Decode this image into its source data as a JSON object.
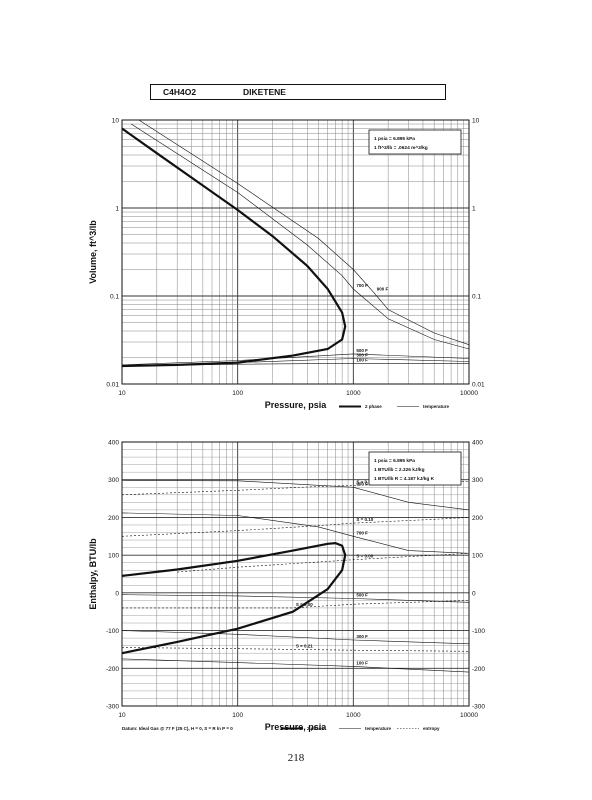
{
  "header": {
    "formula": "C4H4O2",
    "compound": "DIKETENE"
  },
  "page_number": "218",
  "chart_data": [
    {
      "type": "line",
      "id": "volume",
      "xlabel": "Pressure,  psia",
      "ylabel": "Volume, ft^3/lb",
      "xscale": "log",
      "yscale": "log",
      "xlim": [
        10,
        10000
      ],
      "ylim": [
        0.01,
        10
      ],
      "x_ticks": [
        10,
        100,
        1000,
        10000
      ],
      "y_ticks": [
        0.01,
        0.1,
        1,
        10
      ],
      "x_tick_labels": [
        "10",
        "100",
        "1000",
        "10000"
      ],
      "y_tick_labels": [
        "0.01",
        "0.1",
        "1",
        "10"
      ],
      "y_tick_labels_right": [
        "0.01",
        "0.1",
        "1",
        "10"
      ],
      "grid": true,
      "conversion_box": [
        "1 psia = 6.895 kPa",
        "1 ft^3/lb = .0624 m^3/kg"
      ],
      "legend": [
        {
          "label": "2 phase",
          "style": "thick"
        },
        {
          "label": "temperature",
          "style": "thin"
        }
      ],
      "series": [
        {
          "kind": "2 phase",
          "x": [
            10,
            20,
            50,
            100,
            200,
            400,
            600,
            800,
            850,
            800,
            600,
            300,
            100,
            30,
            10
          ],
          "y": [
            8,
            4.2,
            1.8,
            0.95,
            0.48,
            0.22,
            0.12,
            0.065,
            0.045,
            0.032,
            0.025,
            0.021,
            0.0175,
            0.0165,
            0.016
          ]
        },
        {
          "kind": "temperature",
          "label": "100 F",
          "x": [
            10,
            100,
            1000,
            10000
          ],
          "y": [
            0.016,
            0.0168,
            0.0172,
            0.017
          ]
        },
        {
          "kind": "temperature",
          "label": "300 F",
          "x": [
            10,
            100,
            1000,
            10000
          ],
          "y": [
            0.016,
            0.0175,
            0.0195,
            0.018
          ]
        },
        {
          "kind": "temperature",
          "label": "500 F",
          "x": [
            10,
            100,
            1000,
            10000
          ],
          "y": [
            0.0165,
            0.0185,
            0.022,
            0.0195
          ]
        },
        {
          "kind": "temperature",
          "label": "700 F",
          "x": [
            12,
            100,
            400,
            800,
            1000,
            2000,
            5000,
            10000
          ],
          "y": [
            9,
            1.5,
            0.38,
            0.17,
            0.12,
            0.055,
            0.032,
            0.025
          ]
        },
        {
          "kind": "temperature",
          "label": "900 F",
          "x": [
            14,
            100,
            500,
            1000,
            1500,
            2000,
            5000,
            10000
          ],
          "y": [
            10,
            1.9,
            0.45,
            0.2,
            0.11,
            0.07,
            0.038,
            0.028
          ]
        }
      ]
    },
    {
      "type": "line",
      "id": "enthalpy",
      "xlabel": "Pressure,  psia",
      "ylabel": "Enthalpy, BTU/lb",
      "xscale": "log",
      "yscale": "linear",
      "xlim": [
        10,
        10000
      ],
      "ylim": [
        -300,
        400
      ],
      "x_ticks": [
        10,
        100,
        1000,
        10000
      ],
      "y_ticks": [
        -300,
        -200,
        -100,
        0,
        100,
        200,
        300,
        400
      ],
      "x_tick_labels": [
        "10",
        "100",
        "1000",
        "10000"
      ],
      "y_tick_labels": [
        "-300",
        "-200",
        "-100",
        "0",
        "100",
        "200",
        "300",
        "400"
      ],
      "y_tick_labels_right": [
        "-300",
        "-200",
        "-100",
        "0",
        "100",
        "200",
        "300",
        "400"
      ],
      "grid": true,
      "conversion_box": [
        "1 psia = 6.895 kPa",
        "1 BTU/lb = 2.326 kJ/kg",
        "1 BTU/lb R = 4.187 kJ/kg K"
      ],
      "legend": [
        {
          "label": "2 phase",
          "style": "thick"
        },
        {
          "label": "temperature",
          "style": "thin"
        },
        {
          "label": "entropy",
          "style": "dotted"
        }
      ],
      "datum_note": "Datum: Ideal Gas @ 77 F (25 C),  H = 0,  S = R ln P = 0",
      "series": [
        {
          "kind": "2 phase",
          "x": [
            10,
            30,
            100,
            300,
            600,
            700,
            800,
            850,
            800,
            600,
            300,
            100,
            30,
            10
          ],
          "y": [
            45,
            62,
            85,
            112,
            130,
            132,
            125,
            100,
            60,
            10,
            -50,
            -95,
            -130,
            -160
          ]
        },
        {
          "kind": "temperature",
          "label": "900 F",
          "x": [
            10,
            100,
            1000,
            3000,
            10000
          ],
          "y": [
            298,
            297,
            280,
            240,
            220
          ]
        },
        {
          "kind": "temperature",
          "label": "700 F",
          "x": [
            10,
            100,
            500,
            1000,
            3000,
            10000
          ],
          "y": [
            212,
            205,
            175,
            150,
            112,
            105
          ]
        },
        {
          "kind": "temperature",
          "label": "500 F",
          "x": [
            10,
            100,
            1000,
            10000
          ],
          "y": [
            -5,
            -8,
            -15,
            -25
          ]
        },
        {
          "kind": "temperature",
          "label": "300 F",
          "x": [
            10,
            100,
            1000,
            10000
          ],
          "y": [
            -100,
            -110,
            -125,
            -135
          ]
        },
        {
          "kind": "temperature",
          "label": "100 F",
          "x": [
            10,
            100,
            1000,
            10000
          ],
          "y": [
            -175,
            -185,
            -195,
            -210
          ]
        },
        {
          "kind": "entropy",
          "label": "S = 0.21",
          "x": [
            10,
            100,
            500,
            1000,
            5000,
            10000
          ],
          "y": [
            260,
            272,
            282,
            285,
            292,
            296
          ]
        },
        {
          "kind": "entropy",
          "label": "S = 0.10",
          "x": [
            10,
            100,
            500,
            1000,
            5000,
            10000
          ],
          "y": [
            150,
            165,
            178,
            185,
            195,
            200
          ]
        },
        {
          "kind": "entropy",
          "label": "S = 0.00",
          "x": [
            30,
            100,
            1000,
            10000
          ],
          "y": [
            55,
            68,
            88,
            105
          ]
        },
        {
          "kind": "entropy",
          "label": "S = 0.00",
          "x": [
            10,
            100,
            300,
            1000,
            10000
          ],
          "y": [
            -40,
            -40,
            -40,
            -30,
            -20
          ]
        },
        {
          "kind": "entropy",
          "label": "S = 0.21",
          "x": [
            10,
            100,
            300,
            1000,
            10000
          ],
          "y": [
            -145,
            -148,
            -150,
            -152,
            -155
          ]
        }
      ]
    }
  ]
}
